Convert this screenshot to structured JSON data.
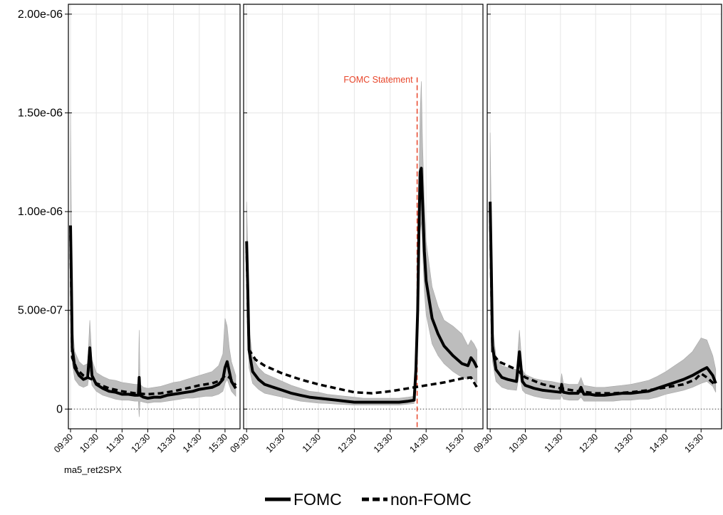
{
  "chart_data": {
    "type": "line",
    "caption": "ma5_ret2SPX",
    "ylim": [
      -1e-07,
      2.05e-06
    ],
    "yticks": [
      {
        "value": 0,
        "label": "0"
      },
      {
        "value": 5e-07,
        "label": "5.00e-07"
      },
      {
        "value": 1e-06,
        "label": "1.00e-06"
      },
      {
        "value": 1.5e-06,
        "label": "1.50e-06"
      },
      {
        "value": 2e-06,
        "label": "2.00e-06"
      }
    ],
    "xticks": [
      "09:30",
      "10:30",
      "11:30",
      "12:30",
      "13:30",
      "14:30",
      "15:30"
    ],
    "xlim_minutes": [
      "09:25",
      "16:05"
    ],
    "grid": true,
    "colors": {
      "line": "#000000",
      "band": "#bdbdbd",
      "annotation": "#e8462b"
    },
    "legend": {
      "position": "bottom",
      "entries": [
        {
          "label": "FOMC",
          "style": "solid"
        },
        {
          "label": "non-FOMC",
          "style": "dashed"
        }
      ]
    },
    "panels": [
      {
        "id": "panel-1",
        "fomc": {
          "x": [
            "09:30",
            "09:32",
            "09:34",
            "09:40",
            "09:50",
            "10:00",
            "10:10",
            "10:15",
            "10:20",
            "10:30",
            "10:45",
            "11:00",
            "11:15",
            "11:30",
            "11:45",
            "12:00",
            "12:08",
            "12:10",
            "12:12",
            "12:20",
            "12:30",
            "12:45",
            "13:00",
            "13:15",
            "13:30",
            "13:45",
            "14:00",
            "14:15",
            "14:30",
            "14:45",
            "15:00",
            "15:15",
            "15:25",
            "15:30",
            "15:35",
            "15:40",
            "15:45",
            "15:55"
          ],
          "y": [
            9.3e-07,
            6.5e-07,
            3.1e-07,
            2.1e-07,
            1.7e-07,
            1.5e-07,
            1.6e-07,
            3.1e-07,
            1.7e-07,
            1.25e-07,
            1.05e-07,
            9e-08,
            8.5e-08,
            7.5e-08,
            7.5e-08,
            7e-08,
            7e-08,
            1.6e-07,
            7e-08,
            6e-08,
            5.5e-08,
            6e-08,
            6e-08,
            7e-08,
            7.5e-08,
            8e-08,
            8.5e-08,
            9e-08,
            1e-07,
            1.05e-07,
            1.1e-07,
            1.25e-07,
            1.5e-07,
            2.1e-07,
            2.4e-07,
            1.9e-07,
            1.4e-07,
            1.05e-07
          ],
          "low": [
            7.5e-07,
            5e-07,
            2.3e-07,
            1.5e-07,
            1.2e-07,
            1.1e-07,
            1.2e-07,
            2e-07,
            1.2e-07,
            9e-08,
            7e-08,
            6e-08,
            5e-08,
            4.5e-08,
            4.5e-08,
            4e-08,
            4e-08,
            -4e-08,
            4e-08,
            3.5e-08,
            3e-08,
            3.5e-08,
            3.5e-08,
            4e-08,
            4.5e-08,
            5e-08,
            5.5e-08,
            5.5e-08,
            6e-08,
            6.5e-08,
            6.5e-08,
            7.5e-08,
            9e-08,
            1.3e-07,
            1.5e-07,
            1.2e-07,
            9e-08,
            6.5e-08
          ],
          "high": [
            1.5e-06,
            9.5e-07,
            4.3e-07,
            2.9e-07,
            2.4e-07,
            2.2e-07,
            2.3e-07,
            4.5e-07,
            2.5e-07,
            1.85e-07,
            1.65e-07,
            1.5e-07,
            1.45e-07,
            1.35e-07,
            1.3e-07,
            1.25e-07,
            1.25e-07,
            4e-07,
            1.25e-07,
            1.1e-07,
            1.05e-07,
            1.1e-07,
            1.15e-07,
            1.25e-07,
            1.35e-07,
            1.4e-07,
            1.5e-07,
            1.6e-07,
            1.7e-07,
            1.8e-07,
            1.9e-07,
            2.2e-07,
            2.8e-07,
            4.6e-07,
            4.2e-07,
            3.1e-07,
            2.4e-07,
            1.7e-07
          ]
        },
        "nonfomc": {
          "x": [
            "09:30",
            "09:34",
            "09:45",
            "10:00",
            "10:20",
            "10:30",
            "11:00",
            "11:30",
            "12:00",
            "12:30",
            "13:00",
            "13:30",
            "14:00",
            "14:30",
            "15:00",
            "15:20",
            "15:30",
            "15:40",
            "15:55"
          ],
          "y": [
            8.8e-07,
            2.6e-07,
            2e-07,
            1.7e-07,
            1.5e-07,
            1.3e-07,
            1.05e-07,
            9e-08,
            8e-08,
            7.5e-08,
            8e-08,
            9e-08,
            1.05e-07,
            1.2e-07,
            1.3e-07,
            1.45e-07,
            1.7e-07,
            1.6e-07,
            1.2e-07
          ]
        }
      },
      {
        "id": "panel-2",
        "annotation": {
          "label": "FOMC Statement",
          "x": "14:15"
        },
        "fomc": {
          "x": [
            "09:30",
            "09:32",
            "09:34",
            "09:40",
            "09:50",
            "10:00",
            "10:15",
            "10:30",
            "10:45",
            "11:00",
            "11:15",
            "11:30",
            "11:45",
            "12:00",
            "12:15",
            "12:30",
            "12:45",
            "13:00",
            "13:15",
            "13:30",
            "13:45",
            "14:00",
            "14:10",
            "14:13",
            "14:16",
            "14:18",
            "14:20",
            "14:22",
            "14:24",
            "14:27",
            "14:30",
            "14:40",
            "14:50",
            "15:00",
            "15:15",
            "15:30",
            "15:40",
            "15:45",
            "15:50",
            "15:55"
          ],
          "y": [
            8.5e-07,
            6e-07,
            3e-07,
            1.9e-07,
            1.5e-07,
            1.25e-07,
            1.1e-07,
            9.5e-08,
            8e-08,
            7e-08,
            6e-08,
            5.5e-08,
            5e-08,
            4.5e-08,
            4e-08,
            3.5e-08,
            3.5e-08,
            3.5e-08,
            3.5e-08,
            3.5e-08,
            3.5e-08,
            4e-08,
            4.5e-08,
            2e-07,
            5e-07,
            9e-07,
            1.2e-06,
            1.22e-06,
            1.05e-06,
            8e-07,
            6.5e-07,
            4.6e-07,
            3.8e-07,
            3.2e-07,
            2.7e-07,
            2.3e-07,
            2.2e-07,
            2.6e-07,
            2.4e-07,
            2.1e-07
          ],
          "low": [
            6.8e-07,
            4.4e-07,
            2.1e-07,
            1.3e-07,
            1e-07,
            8e-08,
            7e-08,
            6e-08,
            5e-08,
            4e-08,
            3.5e-08,
            3e-08,
            2.8e-08,
            2.5e-08,
            2.3e-08,
            2e-08,
            2e-08,
            2e-08,
            2e-08,
            2e-08,
            2e-08,
            2.5e-08,
            2.8e-08,
            1.5e-07,
            3.8e-07,
            7e-07,
            9e-07,
            9.5e-07,
            8e-07,
            6e-07,
            4.8e-07,
            3.3e-07,
            2.7e-07,
            2.3e-07,
            1.9e-07,
            1.6e-07,
            1.5e-07,
            1.6e-07,
            1.5e-07,
            1.3e-07
          ],
          "high": [
            1.05e-06,
            8e-07,
            4.1e-07,
            2.6e-07,
            2.1e-07,
            1.8e-07,
            1.6e-07,
            1.4e-07,
            1.2e-07,
            1.05e-07,
            9e-08,
            8.5e-08,
            7.5e-08,
            7e-08,
            6.5e-08,
            6e-08,
            5.5e-08,
            5.5e-08,
            5.5e-08,
            5.5e-08,
            5.5e-08,
            6e-08,
            6.5e-08,
            2.6e-07,
            6.5e-07,
            1.15e-06,
            1.5e-06,
            1.66e-06,
            1.35e-06,
            1.05e-06,
            8.5e-07,
            6.2e-07,
            5.2e-07,
            4.5e-07,
            4.2e-07,
            3.8e-07,
            3.2e-07,
            3.5e-07,
            3.3e-07,
            3e-07
          ]
        },
        "nonfomc": {
          "x": [
            "09:30",
            "09:34",
            "09:45",
            "10:00",
            "10:15",
            "10:30",
            "11:00",
            "11:30",
            "12:00",
            "12:30",
            "13:00",
            "13:30",
            "14:00",
            "14:30",
            "15:00",
            "15:30",
            "15:45",
            "15:55"
          ],
          "y": [
            8.2e-07,
            3e-07,
            2.5e-07,
            2.2e-07,
            2e-07,
            1.8e-07,
            1.5e-07,
            1.25e-07,
            1.05e-07,
            8.5e-08,
            8e-08,
            9e-08,
            1.05e-07,
            1.2e-07,
            1.35e-07,
            1.55e-07,
            1.6e-07,
            1.1e-07
          ]
        }
      },
      {
        "id": "panel-3",
        "fomc": {
          "x": [
            "09:30",
            "09:32",
            "09:34",
            "09:40",
            "09:50",
            "10:00",
            "10:15",
            "10:20",
            "10:25",
            "10:30",
            "10:45",
            "11:00",
            "11:15",
            "11:30",
            "11:32",
            "11:35",
            "11:45",
            "12:00",
            "12:05",
            "12:10",
            "12:20",
            "12:30",
            "12:45",
            "13:00",
            "13:15",
            "13:30",
            "13:45",
            "14:00",
            "14:15",
            "14:30",
            "14:45",
            "15:00",
            "15:15",
            "15:30",
            "15:40",
            "15:50",
            "15:55"
          ],
          "y": [
            1.05e-06,
            7e-07,
            3.2e-07,
            2e-07,
            1.6e-07,
            1.5e-07,
            1.4e-07,
            2.9e-07,
            1.4e-07,
            1.2e-07,
            1.05e-07,
            9.5e-08,
            9e-08,
            8.5e-08,
            1.25e-07,
            8.5e-08,
            8e-08,
            8e-08,
            1.1e-07,
            7.5e-08,
            7.5e-08,
            7e-08,
            7e-08,
            7.5e-08,
            8e-08,
            8e-08,
            8.5e-08,
            9e-08,
            1.05e-07,
            1.2e-07,
            1.35e-07,
            1.5e-07,
            1.7e-07,
            1.95e-07,
            2.1e-07,
            1.7e-07,
            1.3e-07
          ],
          "low": [
            8.3e-07,
            5.3e-07,
            2.4e-07,
            1.4e-07,
            1.1e-07,
            1e-07,
            9.5e-08,
            1.8e-07,
            9.5e-08,
            8e-08,
            6.5e-08,
            5.5e-08,
            5e-08,
            5e-08,
            7e-08,
            5e-08,
            4.5e-08,
            4.5e-08,
            6e-08,
            4e-08,
            4e-08,
            4e-08,
            4e-08,
            4e-08,
            4.5e-08,
            4.5e-08,
            5e-08,
            5e-08,
            6e-08,
            7.5e-08,
            8.5e-08,
            9.5e-08,
            1.1e-07,
            1.3e-07,
            1.4e-07,
            1.15e-07,
            8.5e-08
          ],
          "high": [
            1.4e-06,
            9.5e-07,
            4.2e-07,
            2.7e-07,
            2.2e-07,
            2.1e-07,
            2e-07,
            4e-07,
            2e-07,
            1.75e-07,
            1.55e-07,
            1.45e-07,
            1.4e-07,
            1.3e-07,
            1.8e-07,
            1.3e-07,
            1.25e-07,
            1.25e-07,
            1.6e-07,
            1.2e-07,
            1.15e-07,
            1.1e-07,
            1.1e-07,
            1.15e-07,
            1.2e-07,
            1.25e-07,
            1.35e-07,
            1.45e-07,
            1.65e-07,
            1.9e-07,
            2.2e-07,
            2.5e-07,
            2.9e-07,
            3.6e-07,
            3.5e-07,
            2.7e-07,
            2e-07
          ]
        },
        "nonfomc": {
          "x": [
            "09:30",
            "09:34",
            "09:45",
            "10:00",
            "10:15",
            "10:30",
            "11:00",
            "11:30",
            "12:00",
            "12:30",
            "13:00",
            "13:30",
            "14:00",
            "14:30",
            "15:00",
            "15:20",
            "15:30",
            "15:40",
            "15:55"
          ],
          "y": [
            1.02e-06,
            2.8e-07,
            2.4e-07,
            2.2e-07,
            2e-07,
            1.6e-07,
            1.25e-07,
            1.05e-07,
            9e-08,
            8e-08,
            8e-08,
            8.5e-08,
            9.5e-08,
            1.1e-07,
            1.25e-07,
            1.5e-07,
            1.8e-07,
            1.6e-07,
            1.2e-07
          ]
        }
      }
    ]
  }
}
